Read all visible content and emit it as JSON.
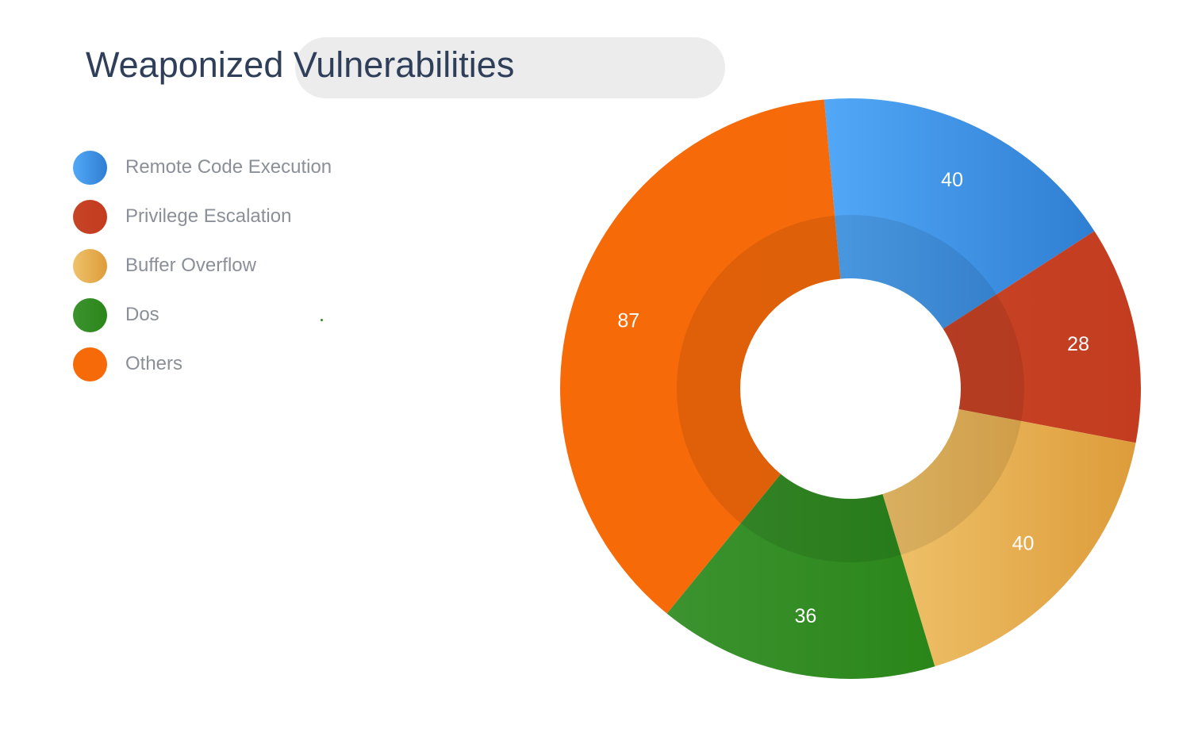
{
  "chart_data": {
    "type": "pie",
    "title": "Weaponized Vulnerabilities",
    "donut": true,
    "legend_position": "left",
    "categories": [
      "Remote Code Execution",
      "Privilege Escalation",
      "Buffer Overflow",
      "Dos",
      "Others"
    ],
    "values": [
      40,
      28,
      40,
      36,
      87
    ],
    "colors": [
      [
        "#52a8f7",
        "#2f7ed2"
      ],
      [
        "#c74426",
        "#c33c20"
      ],
      [
        "#efc26b",
        "#dd9c3a"
      ],
      [
        "#3c9330",
        "#2a8619"
      ],
      [
        "#f76a08",
        "#f56a0a"
      ]
    ],
    "legend_colors": [
      "#3a8de0",
      "#c33f22",
      "#e2a954",
      "#2f8c21",
      "#f56a0a"
    ]
  }
}
